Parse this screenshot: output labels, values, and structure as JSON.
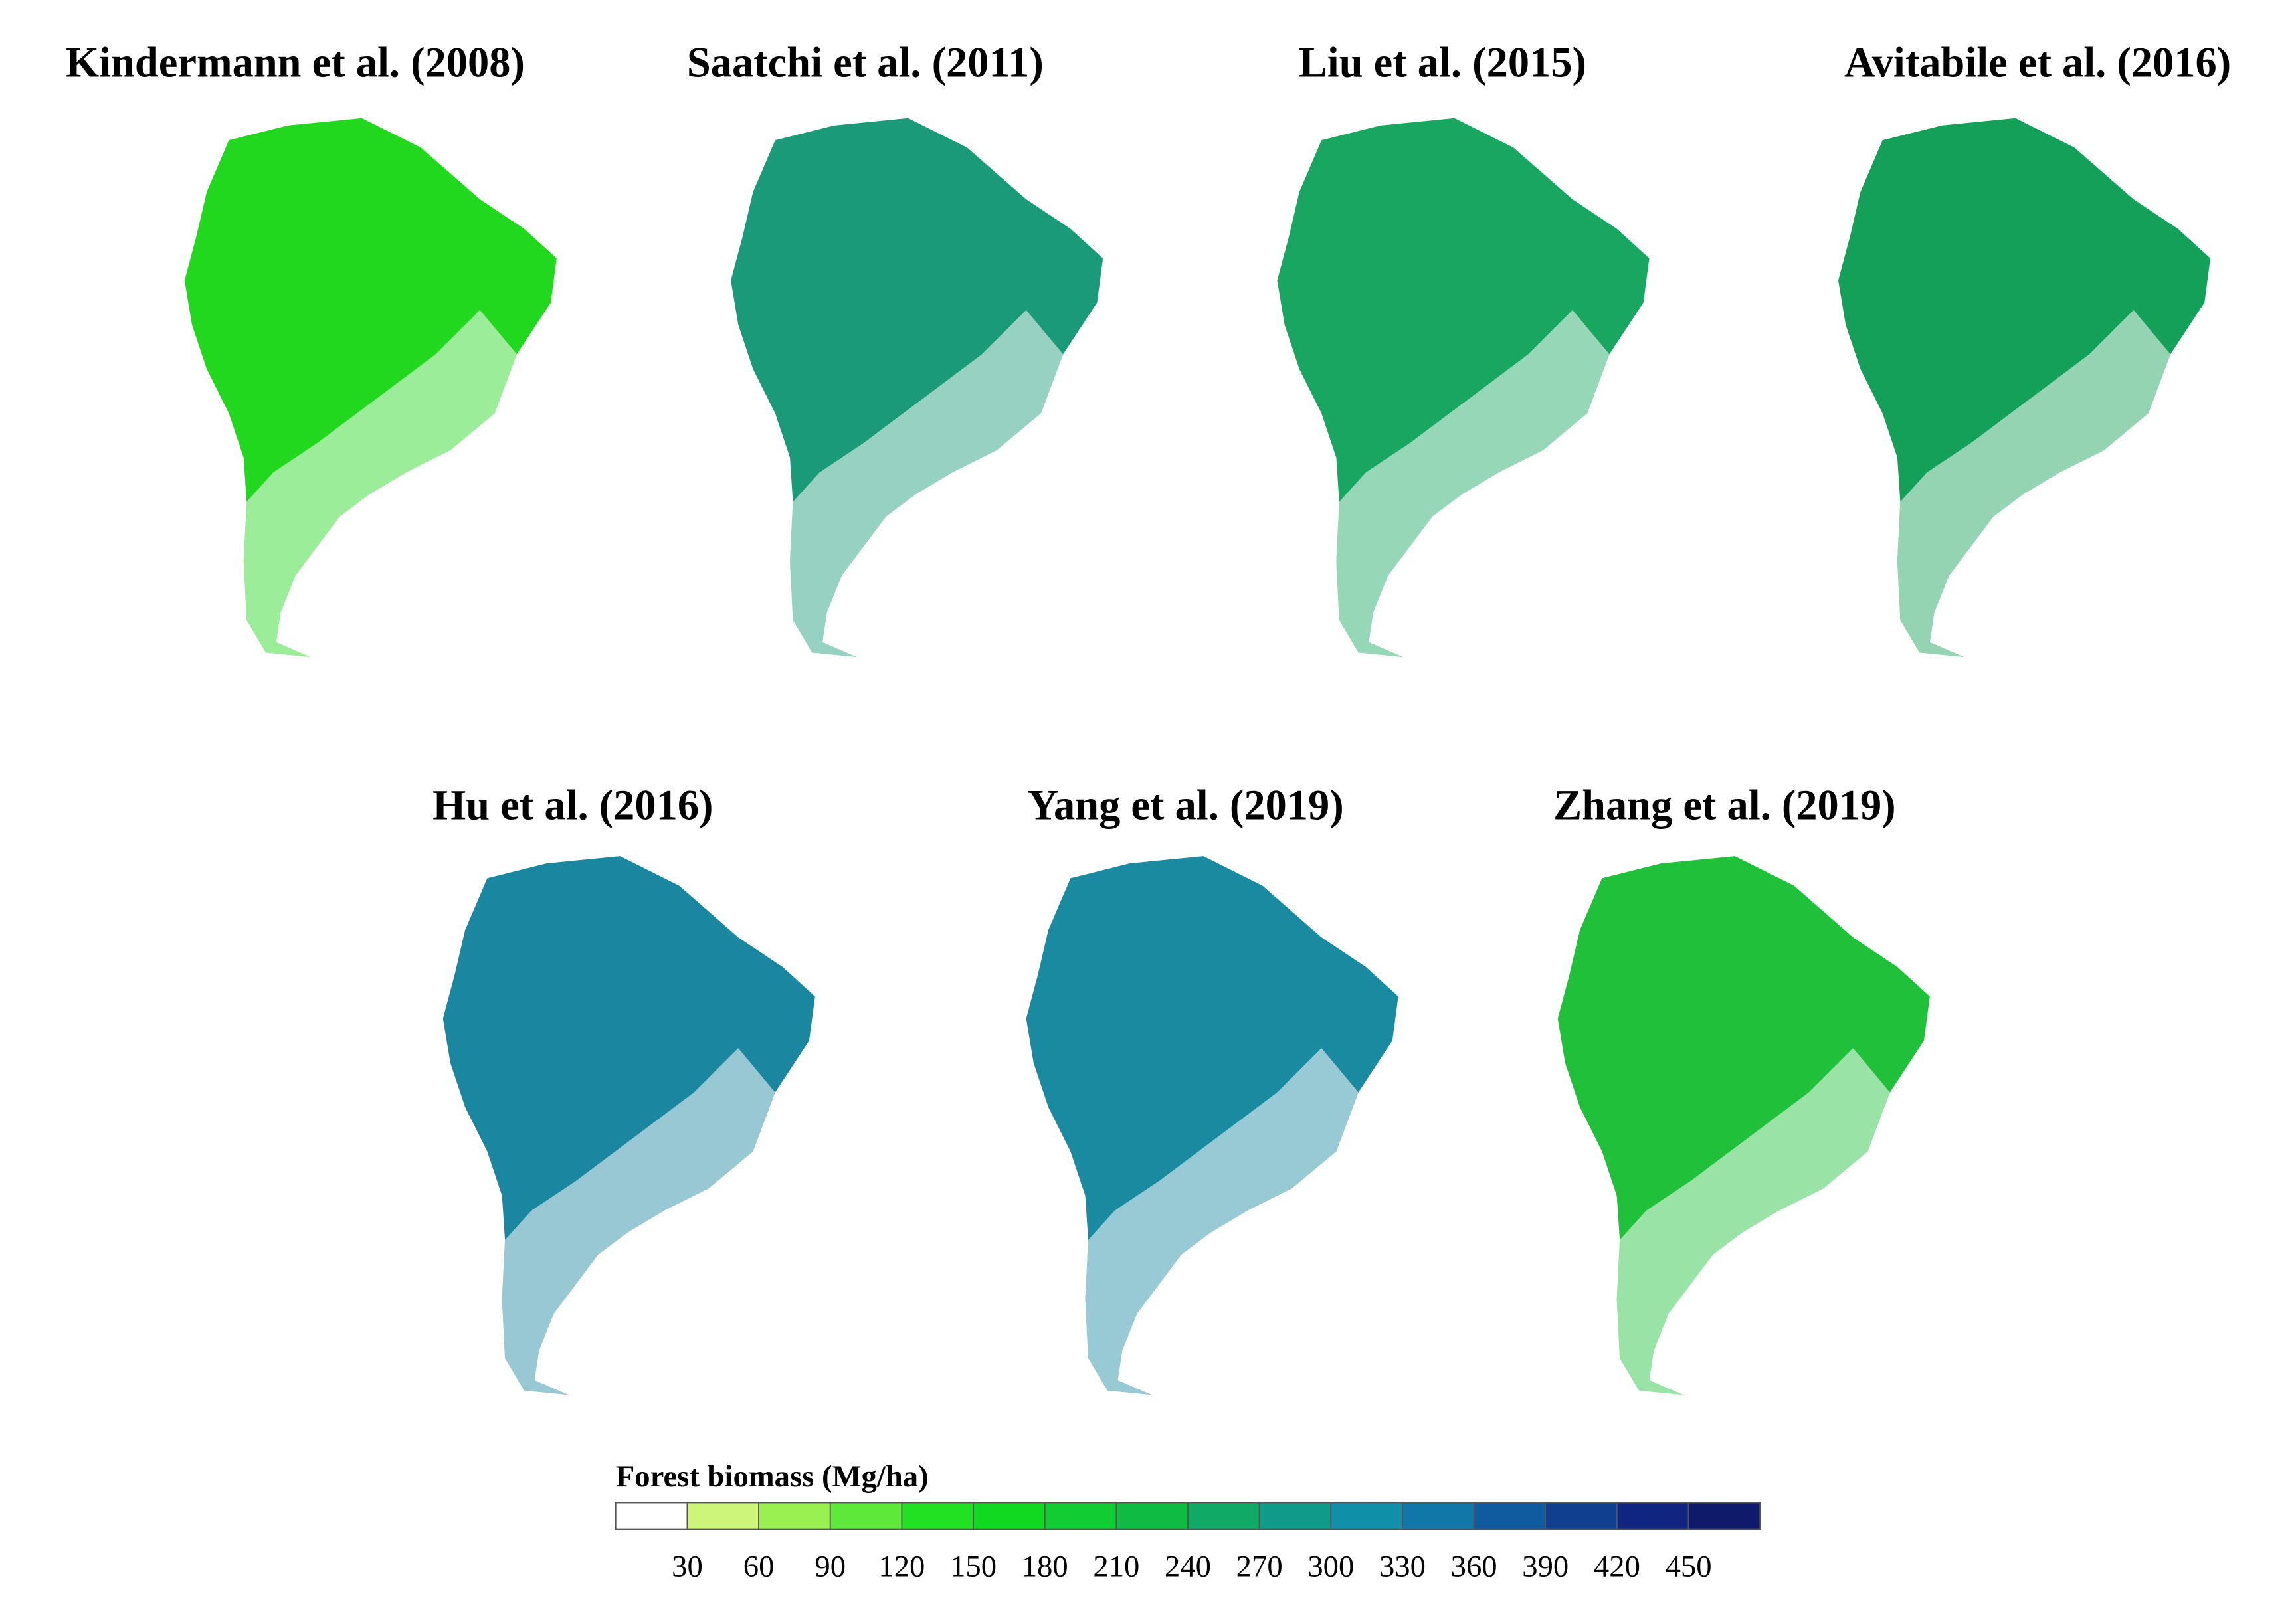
{
  "panels": [
    {
      "title": "Kindermann et al. (2008)",
      "color": "#22d81e"
    },
    {
      "title": "Saatchi et al. (2011)",
      "color": "#1a9a78"
    },
    {
      "title": "Liu et al. (2015)",
      "color": "#18a660"
    },
    {
      "title": "Avitabile et al. (2016)",
      "color": "#14a058"
    },
    {
      "title": "Hu et al. (2016)",
      "color": "#1a86a0"
    },
    {
      "title": "Yang et al. (2019)",
      "color": "#1a8aa0"
    },
    {
      "title": "Zhang et al. (2019)",
      "color": "#20c03a"
    }
  ],
  "colorbar": {
    "label": "Forest biomass (Mg/ha)",
    "ticks": [
      30,
      60,
      90,
      120,
      150,
      180,
      210,
      240,
      270,
      300,
      330,
      360,
      390,
      420,
      450
    ],
    "colors": [
      "#ffffff",
      "#ccf57a",
      "#99f050",
      "#5ee83a",
      "#22e022",
      "#11d820",
      "#11cc33",
      "#10bb44",
      "#10aa66",
      "#109a8a",
      "#1090a8",
      "#1077a8",
      "#105aa0",
      "#103f90",
      "#10257f",
      "#101a6a"
    ]
  }
}
